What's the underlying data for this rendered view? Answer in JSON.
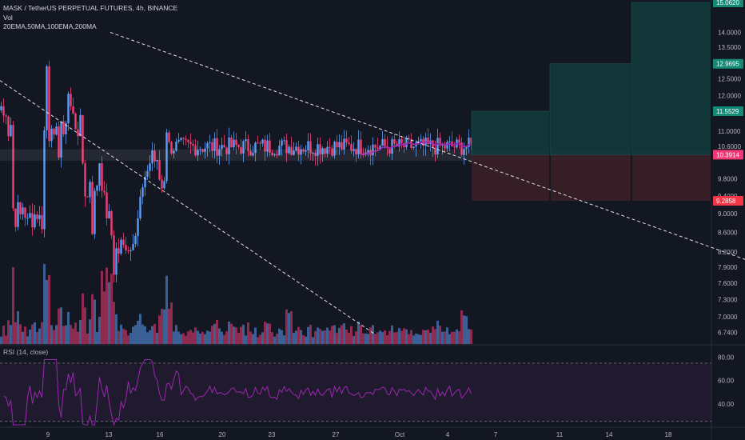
{
  "header": {
    "symbol_line": "MASK / TetherUS PERPETUAL FUTURES, 4h, BINANCE",
    "vol_label": "Vol",
    "ma_label": "20EMA,50MA,100EMA,200MA"
  },
  "rsi": {
    "label": "RSI (14, close)",
    "ticks": [
      {
        "value": 80,
        "text": "80.00"
      },
      {
        "value": 60,
        "text": "60.00"
      },
      {
        "value": 40,
        "text": "40.00"
      }
    ],
    "band_upper": 75,
    "band_lower": 25
  },
  "price_badges": [
    {
      "name": "target-3",
      "value": 15.062,
      "text": "15.0620",
      "color": "#138a76"
    },
    {
      "name": "target-2",
      "value": 12.9695,
      "text": "12.9695",
      "color": "#138a76"
    },
    {
      "name": "target-1",
      "value": 11.5529,
      "text": "11.5529",
      "color": "#138a76"
    },
    {
      "name": "entry",
      "value": 10.3914,
      "text": "10.3914",
      "color": "#f23676"
    },
    {
      "name": "stop",
      "value": 9.2858,
      "text": "9.2858",
      "color": "#f23645"
    }
  ],
  "colors": {
    "up": "#5b9cf6",
    "down": "#f23d76",
    "background": "#131722",
    "rsi_line": "#9c27b0",
    "target_zone": "#12393b",
    "stop_zone": "#3b1f27"
  },
  "chart_data": {
    "type": "candlestick",
    "symbol": "MASK / TetherUS PERPETUAL FUTURES",
    "interval": "4h",
    "exchange": "BINANCE",
    "y_scale": "log",
    "ylim": [
      6.55,
      15.15
    ],
    "x_tick_labels": [
      "9",
      "13",
      "16",
      "20",
      "23",
      "27",
      "Oct",
      "4",
      "7",
      "11",
      "14",
      "18"
    ],
    "y_tick_labels": [
      "14.0000",
      "13.5000",
      "12.5000",
      "12.0000",
      "11.0000",
      "10.6000",
      "9.8000",
      "9.4000",
      "9.0000",
      "8.6000",
      "8.2000",
      "7.9000",
      "7.6000",
      "7.3000",
      "7.0000",
      "6.7400"
    ],
    "price_path_anchors": [
      [
        0,
        11.7
      ],
      [
        3,
        11.4
      ],
      [
        6,
        11.6
      ],
      [
        10,
        10.8
      ],
      [
        12,
        11.2
      ],
      [
        14,
        9.3
      ],
      [
        17,
        8.75
      ],
      [
        20,
        9.15
      ],
      [
        24,
        8.95
      ],
      [
        28,
        9.25
      ],
      [
        32,
        8.75
      ],
      [
        36,
        8.95
      ],
      [
        40,
        8.85
      ],
      [
        43,
        9.05
      ],
      [
        48,
        8.9
      ],
      [
        51,
        8.8
      ],
      [
        54,
        11.0
      ],
      [
        56,
        13.2
      ],
      [
        58,
        12.6
      ],
      [
        60,
        10.9
      ],
      [
        63,
        11.3
      ],
      [
        66,
        10.7
      ],
      [
        69,
        10.9
      ],
      [
        72,
        10.5
      ],
      [
        75,
        11.3
      ],
      [
        78,
        10.7
      ],
      [
        80,
        10.9
      ],
      [
        83,
        12.4
      ],
      [
        85,
        11.8
      ],
      [
        88,
        11.6
      ],
      [
        91,
        11.3
      ],
      [
        94,
        11.1
      ],
      [
        97,
        11.0
      ],
      [
        100,
        11.3
      ],
      [
        102,
        10.2
      ],
      [
        105,
        9.5
      ],
      [
        108,
        9.35
      ],
      [
        111,
        9.8
      ],
      [
        114,
        8.7
      ],
      [
        117,
        9.4
      ],
      [
        119,
        9.6
      ],
      [
        122,
        9.9
      ],
      [
        124,
        10.6
      ],
      [
        126,
        9.7
      ],
      [
        129,
        9.3
      ],
      [
        132,
        9.0
      ],
      [
        135,
        8.9
      ],
      [
        138,
        8.55
      ],
      [
        141,
        7.85
      ],
      [
        143,
        8.3
      ],
      [
        146,
        8.1
      ],
      [
        149,
        8.4
      ],
      [
        152,
        8.25
      ],
      [
        155,
        8.35
      ],
      [
        158,
        8.4
      ],
      [
        161,
        8.15
      ],
      [
        164,
        8.45
      ],
      [
        167,
        8.65
      ],
      [
        170,
        8.8
      ],
      [
        173,
        9.2
      ],
      [
        176,
        9.5
      ],
      [
        179,
        9.6
      ],
      [
        182,
        9.75
      ],
      [
        184,
        10.4
      ],
      [
        186,
        10.2
      ],
      [
        189,
        10.5
      ],
      [
        192,
        10.25
      ],
      [
        195,
        10.1
      ],
      [
        198,
        9.8
      ],
      [
        201,
        9.6
      ],
      [
        203,
        9.75
      ],
      [
        205,
        9.95
      ],
      [
        207,
        11.1
      ],
      [
        209,
        10.6
      ]
    ],
    "patterns": {
      "descending_trendline_upper": [
        [
          138,
          14.0
        ],
        [
          932,
          8.05
        ]
      ],
      "descending_trendline_lower": [
        [
          0,
          12.45
        ],
        [
          470,
          6.7
        ]
      ],
      "horizontal_zone": [
        10.25,
        10.52
      ],
      "position_entry": 10.3914,
      "position_stop": 9.2858,
      "position_targets": [
        11.5529,
        12.9695,
        15.062
      ]
    }
  }
}
